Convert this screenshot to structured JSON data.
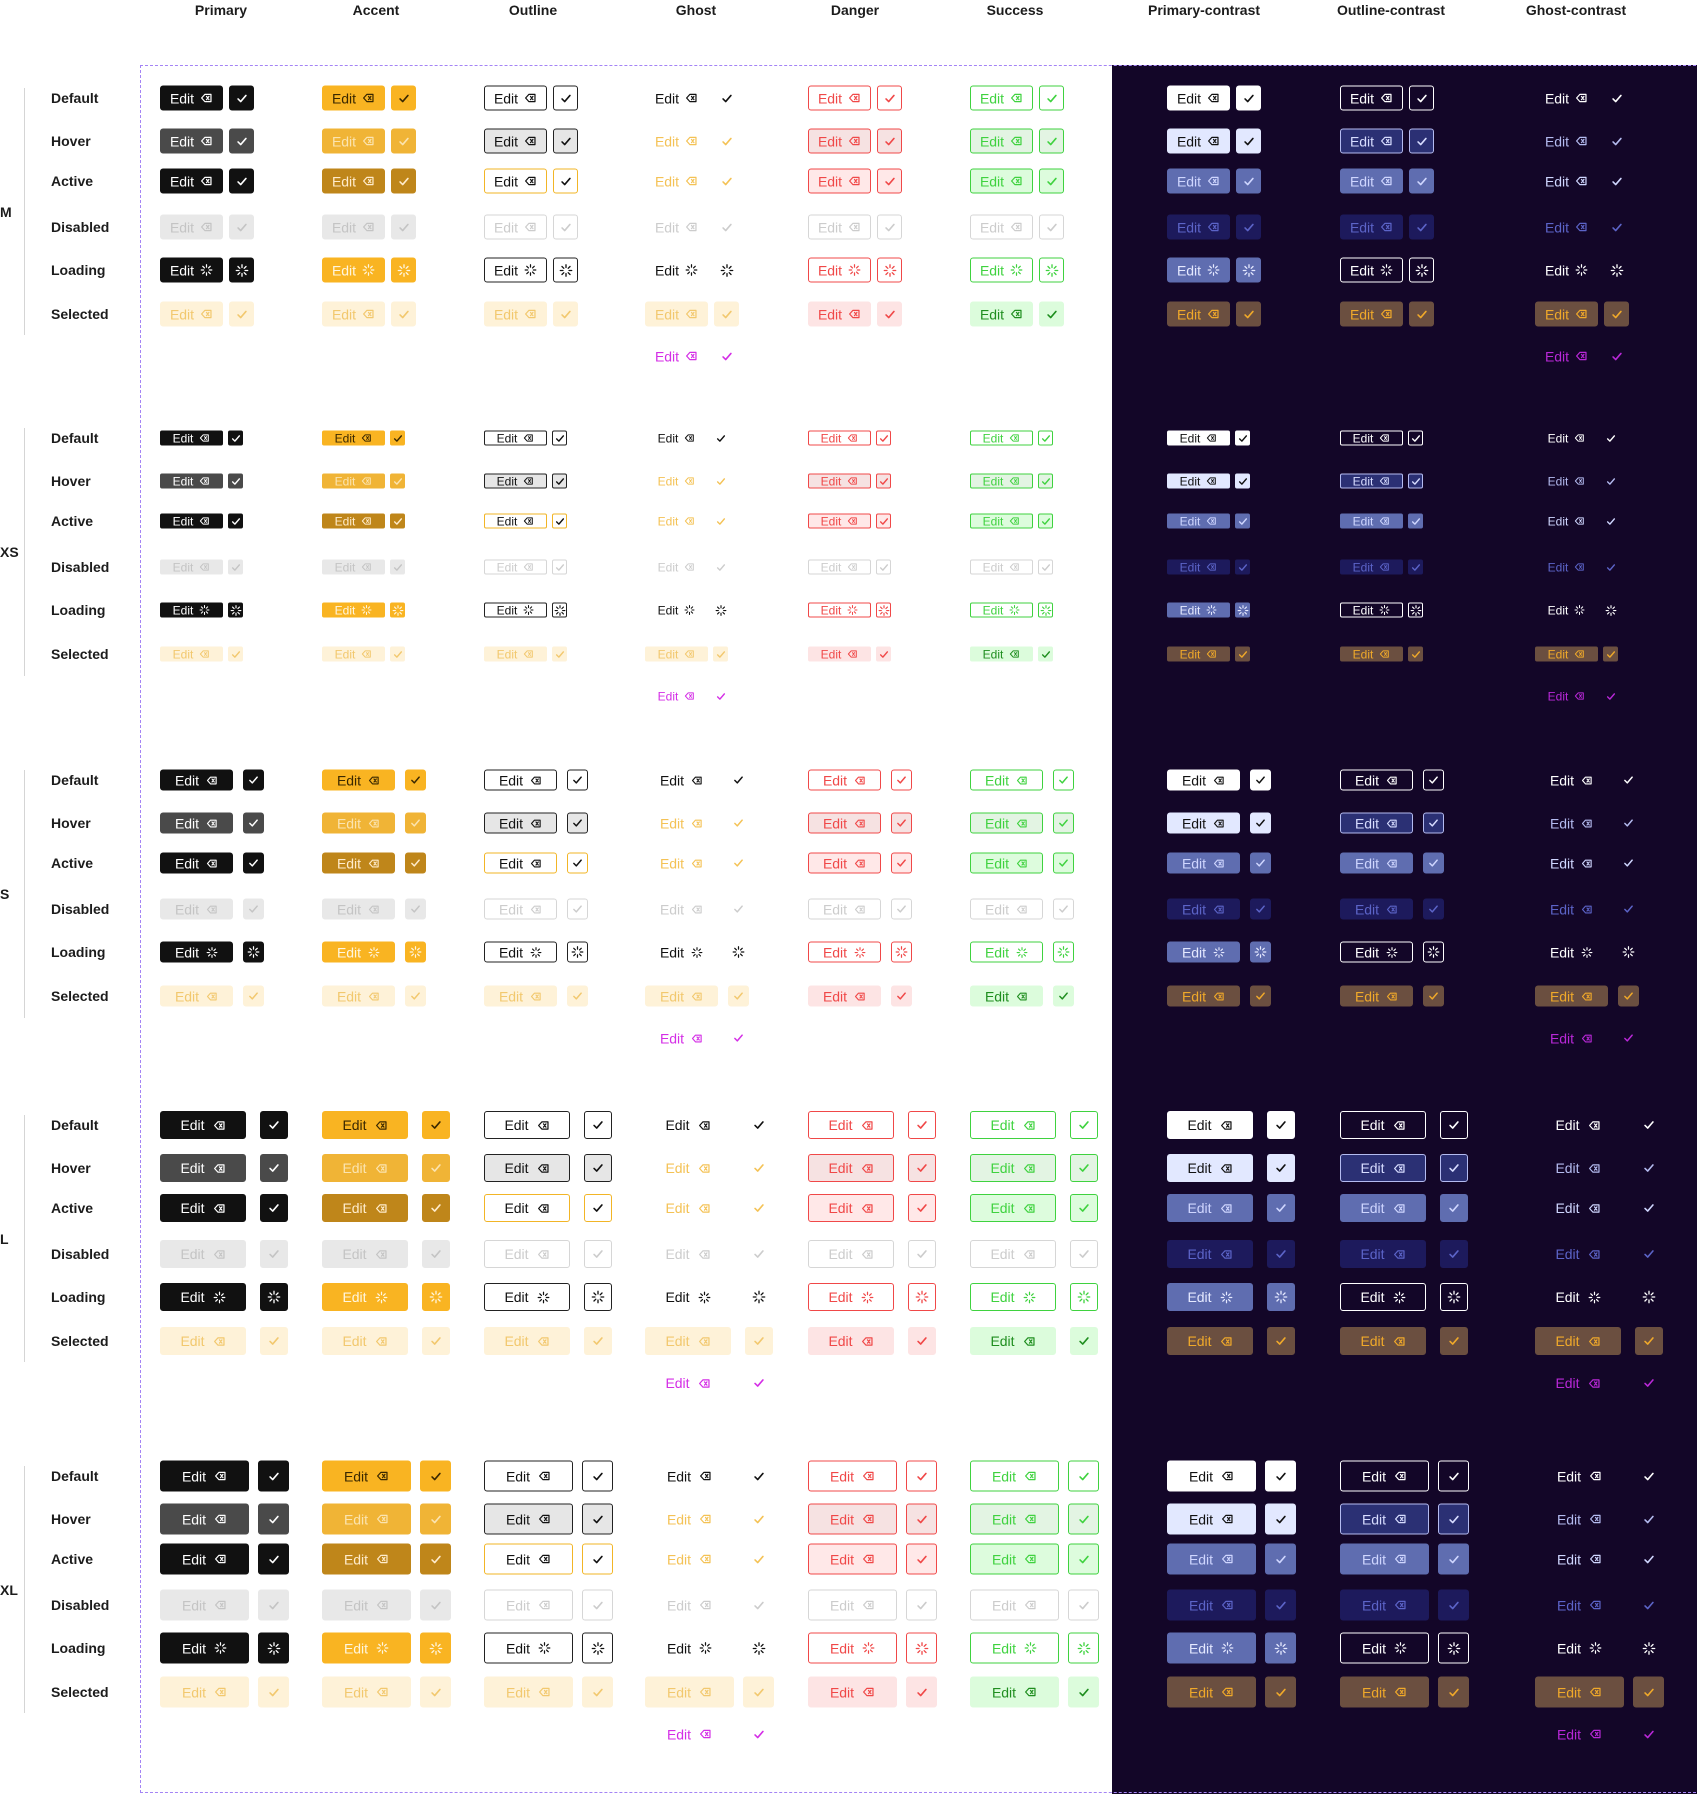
{
  "columns": [
    "Primary",
    "Accent",
    "Outline",
    "Ghost",
    "Danger",
    "Success",
    "Primary-contrast",
    "Outline-contrast",
    "Ghost-contrast"
  ],
  "sizes": [
    {
      "label": "M",
      "states": [
        "Default",
        "Hover",
        "Active",
        "Disabled",
        "Loading",
        "Selected"
      ]
    },
    {
      "label": "XS",
      "states": [
        "Default",
        "Hover",
        "Active",
        "Disabled",
        "Loading",
        "Selected"
      ]
    },
    {
      "label": "S",
      "states": [
        "Default",
        "Hover",
        "Active",
        "Disabled",
        "Loading",
        "Selected"
      ]
    },
    {
      "label": "L",
      "states": [
        "Default",
        "Hover",
        "Active",
        "Disabled",
        "Loading",
        "Selected"
      ]
    },
    {
      "label": "XL",
      "states": [
        "Default",
        "Hover",
        "Active",
        "Disabled",
        "Loading",
        "Selected"
      ]
    }
  ],
  "button_label": "Edit",
  "icons": {
    "tag": "backspace-icon",
    "check": "check-icon",
    "spinner": "spinner-icon"
  },
  "colors": {
    "dark_panel": "#130628",
    "frame": "#a484f5",
    "primary": "#111111",
    "accent": "#f9b422",
    "danger": "#f04848",
    "success": "#3fd23f",
    "selected_bg": "#fef2d8",
    "selected_accent": "#f2c86e",
    "ghost_selected": "#d42ee6",
    "contrast_selected": "#6b4f40"
  }
}
